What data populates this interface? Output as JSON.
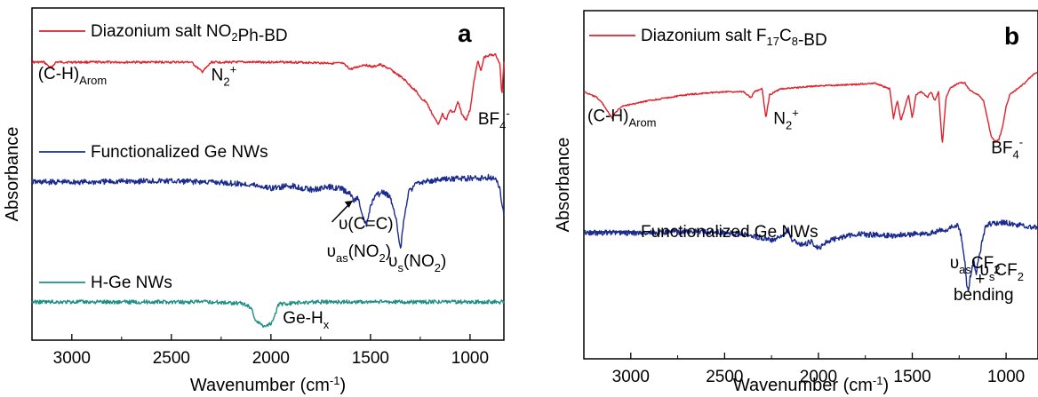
{
  "chart_data": [
    {
      "type": "line",
      "panel_label": "a",
      "xlabel": "Wavenumber (cm⁻¹)",
      "ylabel": "Absorbance",
      "xlim": [
        3200,
        830
      ],
      "reversed_x": true,
      "x_ticks": [
        3000,
        2500,
        2000,
        1500,
        1000
      ],
      "y_ticks_shown": false,
      "series": [
        {
          "name": "Diazonium salt NO₂Ph-BD",
          "color": "#e0202a",
          "legend": {
            "prefix": "Diazonium salt NO",
            "sub": "2",
            "suffix": "Ph-BD"
          },
          "x": [
            3200,
            3140,
            3105,
            3080,
            2800,
            2400,
            2360,
            2345,
            2320,
            2300,
            1900,
            1640,
            1600,
            1530,
            1490,
            1450,
            1400,
            1350,
            1320,
            1300,
            1270,
            1250,
            1220,
            1200,
            1180,
            1160,
            1140,
            1120,
            1100,
            1080,
            1060,
            1040,
            1020,
            1000,
            980,
            960,
            945,
            930,
            900,
            870,
            850,
            840,
            830
          ],
          "y": [
            0.88,
            0.88,
            0.83,
            0.88,
            0.88,
            0.88,
            0.82,
            0.8,
            0.84,
            0.88,
            0.88,
            0.87,
            0.82,
            0.86,
            0.84,
            0.86,
            0.82,
            0.76,
            0.72,
            0.68,
            0.64,
            0.58,
            0.55,
            0.48,
            0.42,
            0.36,
            0.45,
            0.4,
            0.48,
            0.46,
            0.55,
            0.44,
            0.4,
            0.48,
            0.72,
            0.9,
            0.8,
            0.92,
            0.94,
            0.94,
            0.86,
            0.6,
            0.88
          ],
          "labels": [
            {
              "main": "(C-H)",
              "sub": "Arom",
              "at_x": 3170,
              "at_y": 0.74
            },
            {
              "main": "N",
              "sub": "2",
              "sup": "+",
              "at_x": 2300,
              "at_y": 0.73
            },
            {
              "main": "BF",
              "sub": "4",
              "sup": "-",
              "at_x": 960,
              "at_y": 0.36
            }
          ]
        },
        {
          "name": "Functionalized Ge NWs",
          "color": "#1b2a8e",
          "legend": {
            "prefix": "Functionalized Ge NWs",
            "sub": "",
            "suffix": ""
          },
          "x": [
            3200,
            2900,
            2600,
            2300,
            2100,
            2000,
            1900,
            1800,
            1700,
            1650,
            1600,
            1580,
            1560,
            1540,
            1520,
            1500,
            1480,
            1440,
            1400,
            1370,
            1350,
            1330,
            1310,
            1280,
            1250,
            1150,
            1050,
            950,
            900,
            870,
            850,
            830
          ],
          "y": [
            0.0,
            0.0,
            0.01,
            0.0,
            -0.02,
            -0.05,
            -0.03,
            -0.06,
            -0.04,
            -0.05,
            -0.1,
            -0.15,
            -0.12,
            -0.28,
            -0.35,
            -0.2,
            -0.12,
            -0.08,
            -0.12,
            -0.3,
            -0.55,
            -0.28,
            -0.08,
            -0.03,
            0.0,
            0.02,
            0.03,
            0.03,
            0.04,
            0.02,
            -0.06,
            -0.26
          ],
          "labels": [
            {
              "main": "υ(C=C)",
              "at_x": 1660,
              "at_y": -0.38
            },
            {
              "main": "υ",
              "sub": "as",
              "suffix": "(NO",
              "sub2": "2",
              "suffix2": ")",
              "at_x": 1720,
              "at_y": -0.6
            },
            {
              "main": "υ",
              "sub": "s",
              "suffix": "(NO",
              "sub2": "2",
              "suffix2": ")",
              "at_x": 1410,
              "at_y": -0.68
            }
          ]
        },
        {
          "name": "H-Ge NWs",
          "color": "#1f8f85",
          "legend": {
            "prefix": "H-Ge NWs",
            "sub": "",
            "suffix": ""
          },
          "x": [
            3200,
            2300,
            2150,
            2100,
            2080,
            2060,
            2040,
            2020,
            2000,
            1980,
            1960,
            1800,
            1000,
            830
          ],
          "y": [
            0.0,
            0.0,
            -0.01,
            -0.05,
            -0.16,
            -0.2,
            -0.22,
            -0.22,
            -0.2,
            -0.12,
            -0.02,
            0.0,
            0.0,
            0.0
          ],
          "labels": [
            {
              "main": "Ge-H",
              "sub": "x",
              "at_x": 1940,
              "at_y": -0.2
            }
          ]
        }
      ]
    },
    {
      "type": "line",
      "panel_label": "b",
      "xlabel": "Wavenumber (cm⁻¹)",
      "ylabel": "Absorbance",
      "xlim": [
        3250,
        830
      ],
      "reversed_x": true,
      "x_ticks": [
        3000,
        2500,
        2000,
        1500,
        1000
      ],
      "y_ticks_shown": false,
      "series": [
        {
          "name": "Diazonium salt F₁₇C₈-BD",
          "color": "#e0202a",
          "legend": {
            "prefix": "Diazonium salt F",
            "sub": "17",
            "mid": "C",
            "sub2": "8",
            "suffix": "-BD"
          },
          "x": [
            3250,
            3180,
            3150,
            3120,
            3100,
            3080,
            3050,
            2900,
            2700,
            2500,
            2400,
            2360,
            2340,
            2300,
            2280,
            2260,
            2200,
            2000,
            1800,
            1700,
            1620,
            1600,
            1580,
            1560,
            1520,
            1500,
            1480,
            1450,
            1420,
            1400,
            1380,
            1360,
            1340,
            1320,
            1300,
            1280,
            1250,
            1220,
            1200,
            1180,
            1150,
            1120,
            1100,
            1080,
            1060,
            1040,
            1020,
            1000,
            980,
            960,
            940,
            900,
            870,
            850,
            830
          ],
          "y": [
            0.8,
            0.76,
            0.72,
            0.66,
            0.62,
            0.66,
            0.7,
            0.74,
            0.78,
            0.8,
            0.8,
            0.76,
            0.8,
            0.82,
            0.62,
            0.78,
            0.82,
            0.84,
            0.85,
            0.86,
            0.82,
            0.62,
            0.74,
            0.6,
            0.78,
            0.62,
            0.78,
            0.8,
            0.76,
            0.8,
            0.74,
            0.8,
            0.44,
            0.76,
            0.82,
            0.84,
            0.86,
            0.86,
            0.82,
            0.8,
            0.78,
            0.74,
            0.62,
            0.5,
            0.46,
            0.47,
            0.55,
            0.7,
            0.78,
            0.8,
            0.82,
            0.86,
            0.9,
            0.92,
            0.94
          ],
          "labels": [
            {
              "main": "(C-H)",
              "sub": "Arom",
              "at_x": 3245,
              "at_y": 0.6
            },
            {
              "main": "N",
              "sub": "2",
              "sup": "+",
              "at_x": 2240,
              "at_y": 0.58
            },
            {
              "main": "BF",
              "sub": "4",
              "sup": "-",
              "at_x": 1080,
              "at_y": 0.38
            }
          ]
        },
        {
          "name": "Functionalized Ge NWs",
          "color": "#1b2a8e",
          "legend": {
            "prefix": "Functionalized Ge NWs",
            "sub": "",
            "suffix": ""
          },
          "x": [
            3250,
            2900,
            2600,
            2400,
            2250,
            2200,
            2160,
            2140,
            2120,
            2080,
            2040,
            2000,
            1950,
            1900,
            1800,
            1600,
            1400,
            1300,
            1260,
            1240,
            1220,
            1210,
            1200,
            1190,
            1170,
            1160,
            1150,
            1130,
            1110,
            1090,
            1050,
            1000,
            950,
            900,
            860,
            830
          ],
          "y": [
            0.0,
            0.0,
            0.01,
            -0.01,
            -0.05,
            -0.03,
            0.02,
            -0.05,
            -0.06,
            -0.09,
            -0.06,
            -0.11,
            -0.06,
            -0.04,
            -0.01,
            -0.02,
            0.0,
            0.03,
            0.06,
            -0.02,
            -0.2,
            -0.36,
            -0.4,
            -0.3,
            -0.2,
            -0.3,
            -0.2,
            -0.08,
            0.05,
            0.06,
            0.07,
            0.07,
            0.06,
            0.05,
            0.04,
            0.04
          ],
          "labels": [
            {
              "main": "υ",
              "sub": "as",
              "suffix": "CF",
              "sub2": "2",
              "line2": "+",
              "line3": "bending",
              "at_x": 1300,
              "at_y": -0.25
            },
            {
              "main": "υ",
              "sub": "s",
              "suffix": "CF",
              "sub2": "2",
              "at_x": 1140,
              "at_y": -0.3
            }
          ]
        }
      ]
    }
  ]
}
